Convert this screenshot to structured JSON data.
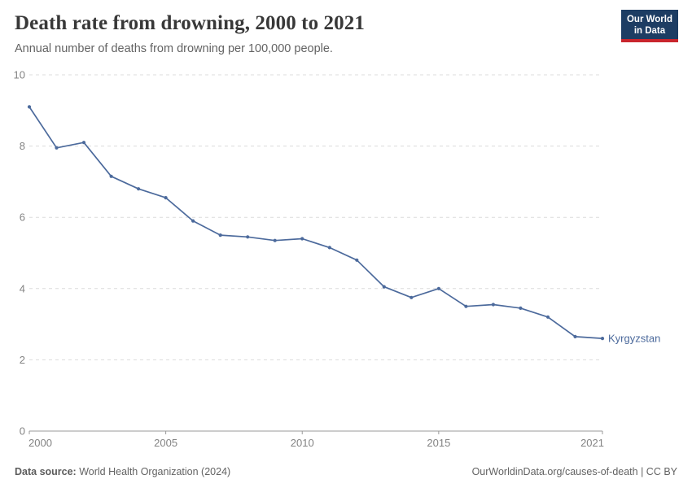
{
  "header": {
    "title": "Death rate from drowning, 2000 to 2021",
    "subtitle": "Annual number of deaths from drowning per 100,000 people."
  },
  "logo": {
    "line1": "Our World",
    "line2": "in Data",
    "bg": "#1d3d63",
    "accent": "#c9252d"
  },
  "footer": {
    "source_label": "Data source:",
    "source_text": "World Health Organization (2024)",
    "credit": "OurWorldinData.org/causes-of-death | CC BY"
  },
  "chart_data": {
    "type": "line",
    "title": "Death rate from drowning, 2000 to 2021",
    "subtitle": "Annual number of deaths from drowning per 100,000 people.",
    "x": [
      2000,
      2001,
      2002,
      2003,
      2004,
      2005,
      2006,
      2007,
      2008,
      2009,
      2010,
      2011,
      2012,
      2013,
      2014,
      2015,
      2016,
      2017,
      2018,
      2019,
      2020,
      2021
    ],
    "series": [
      {
        "name": "Kyrgyzstan",
        "color": "#4c6a9c",
        "values": [
          9.1,
          7.95,
          8.1,
          7.15,
          6.8,
          6.55,
          5.9,
          5.5,
          5.45,
          5.35,
          5.4,
          5.15,
          4.8,
          4.05,
          3.75,
          4.0,
          3.5,
          3.55,
          3.45,
          3.2,
          2.65,
          2.6
        ]
      }
    ],
    "xlabel": "",
    "ylabel": "",
    "ylim": [
      0,
      10
    ],
    "yticks": [
      0,
      2,
      4,
      6,
      8,
      10
    ],
    "xticks": [
      2000,
      2005,
      2010,
      2015,
      2021
    ],
    "grid": "horizontal-dashed",
    "legend": "end-of-line-label",
    "colors": {
      "grid": "#dcdcdc",
      "axis": "#999999",
      "tick_text": "#838383"
    }
  }
}
